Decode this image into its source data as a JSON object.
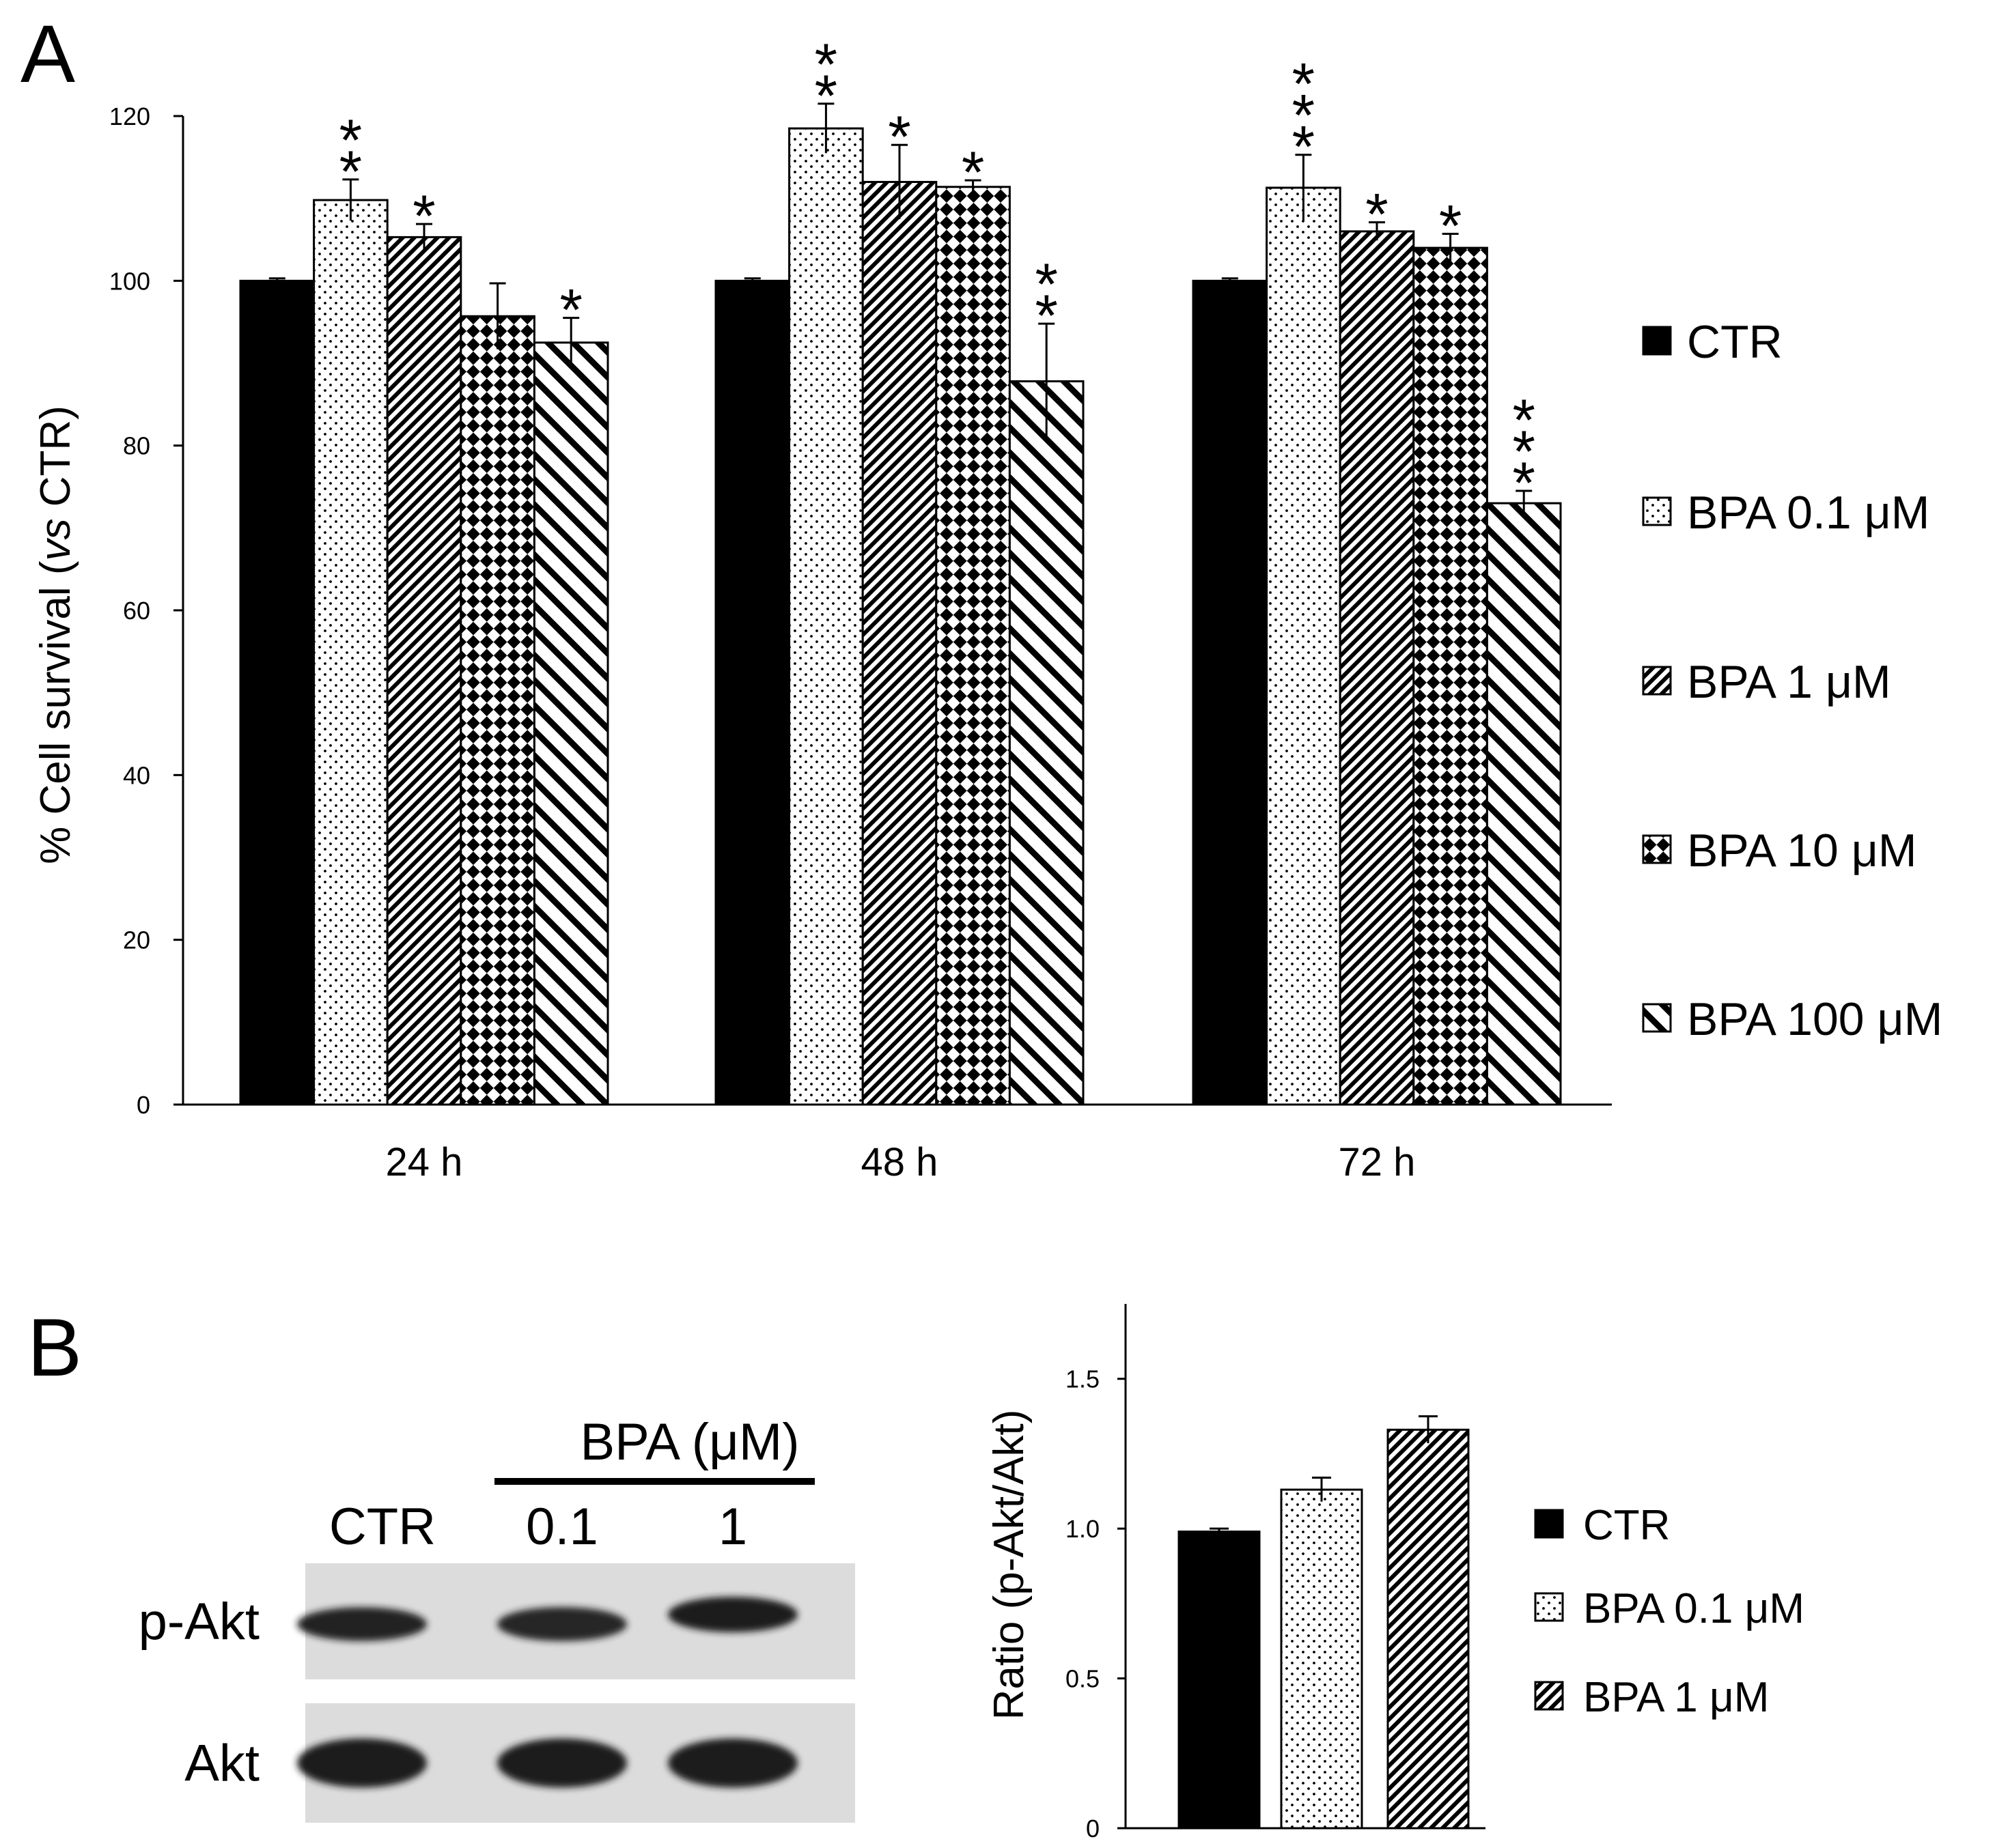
{
  "panels": {
    "a": "A",
    "b": "B"
  },
  "colors": {
    "ctr": "#000000",
    "axis": "#000000",
    "band": "#1a1a1a",
    "blot_bg": "#dcdcdc"
  },
  "chart_data": [
    {
      "type": "bar",
      "ylabel_prefix": "% Cell survival (",
      "ylabel_italic": "vs",
      "ylabel_suffix": " CTR)",
      "ylim": [
        0,
        120
      ],
      "yticks": [
        "0",
        "20",
        "40",
        "60",
        "80",
        "100",
        "120"
      ],
      "categories": [
        "24 h",
        "48 h",
        "72 h"
      ],
      "legend_position": "right",
      "grid": false,
      "series": [
        {
          "name": "CTR",
          "pattern": "solid",
          "values": [
            100,
            100,
            100
          ],
          "errors": [
            0.3,
            0.3,
            0.3
          ],
          "significance": [
            "",
            "",
            ""
          ]
        },
        {
          "name": "BPA 0.1 μM",
          "pattern": "dots",
          "values": [
            109.8,
            118.5,
            111.3
          ],
          "errors": [
            2.5,
            3.0,
            4.0
          ],
          "significance": [
            "**",
            "**",
            "***"
          ]
        },
        {
          "name": "BPA 1 μM",
          "pattern": "diag-fine",
          "values": [
            105.3,
            112.0,
            106.0
          ],
          "errors": [
            1.6,
            4.5,
            1.1
          ],
          "significance": [
            "*",
            "*",
            "*"
          ]
        },
        {
          "name": "BPA 10 μM",
          "pattern": "checker",
          "values": [
            95.7,
            111.4,
            104.0
          ],
          "errors": [
            4.0,
            0.8,
            1.7
          ],
          "significance": [
            "",
            "*",
            "*"
          ]
        },
        {
          "name": "BPA 100 μM",
          "pattern": "diag-coarse",
          "values": [
            92.5,
            87.8,
            73.0
          ],
          "errors": [
            3.0,
            7.0,
            1.5
          ],
          "significance": [
            "*",
            "**",
            "***"
          ]
        }
      ]
    },
    {
      "type": "bar",
      "ylabel": "Ratio (p-Akt/Akt)",
      "ylim": [
        0,
        1.75
      ],
      "yticks": [
        "0",
        "0.5",
        "1.0",
        "1.5"
      ],
      "legend_position": "right",
      "grid": false,
      "series": [
        {
          "name": "CTR",
          "pattern": "solid",
          "value": 0.99,
          "error": 0.01
        },
        {
          "name": "BPA 0.1 μM",
          "pattern": "dots",
          "value": 1.13,
          "error": 0.04
        },
        {
          "name": "BPA 1 μM",
          "pattern": "diag-fine",
          "value": 1.33,
          "error": 0.045
        }
      ]
    }
  ],
  "western_blot": {
    "treatment_label": "BPA (μM)",
    "lanes": [
      "CTR",
      "0.1",
      "1"
    ],
    "rows": [
      {
        "label": "p-Akt",
        "intensity": [
          0.85,
          0.88,
          1.0
        ]
      },
      {
        "label": "Akt",
        "intensity": [
          1.0,
          1.0,
          1.0
        ]
      }
    ]
  }
}
